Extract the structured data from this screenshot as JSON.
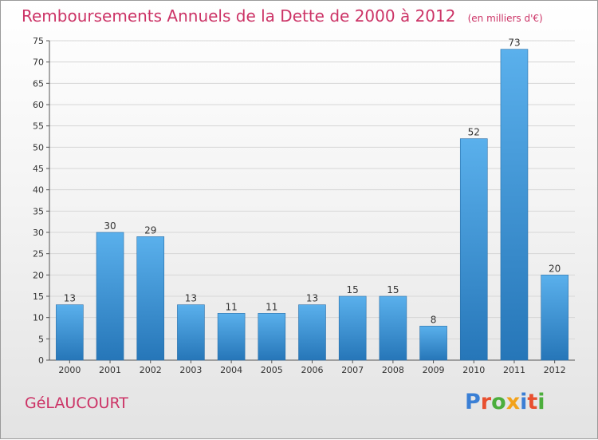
{
  "chart_data": {
    "type": "bar",
    "title": "Remboursements Annuels de la Dette de 2000 à 2012",
    "unit_label": "(en milliers d'€)",
    "categories": [
      "2000",
      "2001",
      "2002",
      "2003",
      "2004",
      "2005",
      "2006",
      "2007",
      "2008",
      "2009",
      "2010",
      "2011",
      "2012"
    ],
    "values": [
      13,
      30,
      29,
      13,
      11,
      11,
      13,
      15,
      15,
      8,
      52,
      73,
      20
    ],
    "ylim": [
      0,
      75
    ],
    "yticks": [
      0,
      5,
      10,
      15,
      20,
      25,
      30,
      35,
      40,
      45,
      50,
      55,
      60,
      65,
      70,
      75
    ],
    "grid": true,
    "bar_color": "#3d96d8"
  },
  "location": "GéLAUCOURT",
  "logo": {
    "text": "Proxiti",
    "colors": [
      "#3a7fd5",
      "#e8502f",
      "#4cae3c",
      "#f2a21a",
      "#3a7fd5",
      "#e8502f",
      "#4cae3c"
    ]
  }
}
